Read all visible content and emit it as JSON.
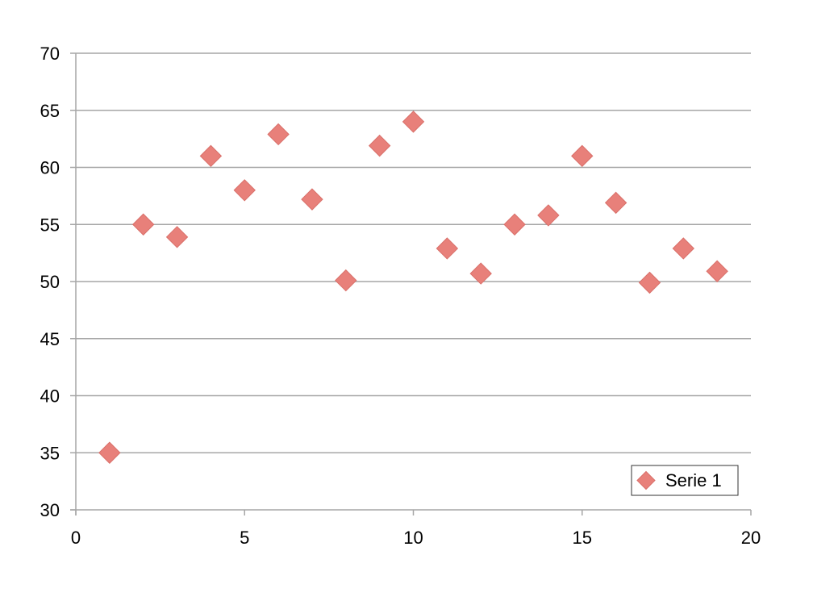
{
  "chart_data": {
    "type": "scatter",
    "title": "",
    "xlabel": "",
    "ylabel": "",
    "xlim": [
      0,
      20
    ],
    "ylim": [
      30,
      70
    ],
    "x_ticks": [
      0,
      5,
      10,
      15,
      20
    ],
    "y_ticks": [
      30,
      35,
      40,
      45,
      50,
      55,
      60,
      65,
      70
    ],
    "grid": "horizontal",
    "legend_position": "bottom-right",
    "marker": "diamond",
    "series": [
      {
        "name": "Serie 1",
        "color": "#e8807a",
        "points": [
          {
            "x": 1,
            "y": 35
          },
          {
            "x": 2,
            "y": 55
          },
          {
            "x": 3,
            "y": 53.9
          },
          {
            "x": 4,
            "y": 61
          },
          {
            "x": 5,
            "y": 58
          },
          {
            "x": 6,
            "y": 62.9
          },
          {
            "x": 7,
            "y": 57.2
          },
          {
            "x": 8,
            "y": 50.1
          },
          {
            "x": 9,
            "y": 61.9
          },
          {
            "x": 10,
            "y": 64
          },
          {
            "x": 11,
            "y": 52.9
          },
          {
            "x": 12,
            "y": 50.7
          },
          {
            "x": 13,
            "y": 55
          },
          {
            "x": 14,
            "y": 55.8
          },
          {
            "x": 15,
            "y": 61
          },
          {
            "x": 16,
            "y": 56.9
          },
          {
            "x": 17,
            "y": 49.9
          },
          {
            "x": 18,
            "y": 52.9
          },
          {
            "x": 19,
            "y": 50.9
          }
        ]
      }
    ]
  }
}
